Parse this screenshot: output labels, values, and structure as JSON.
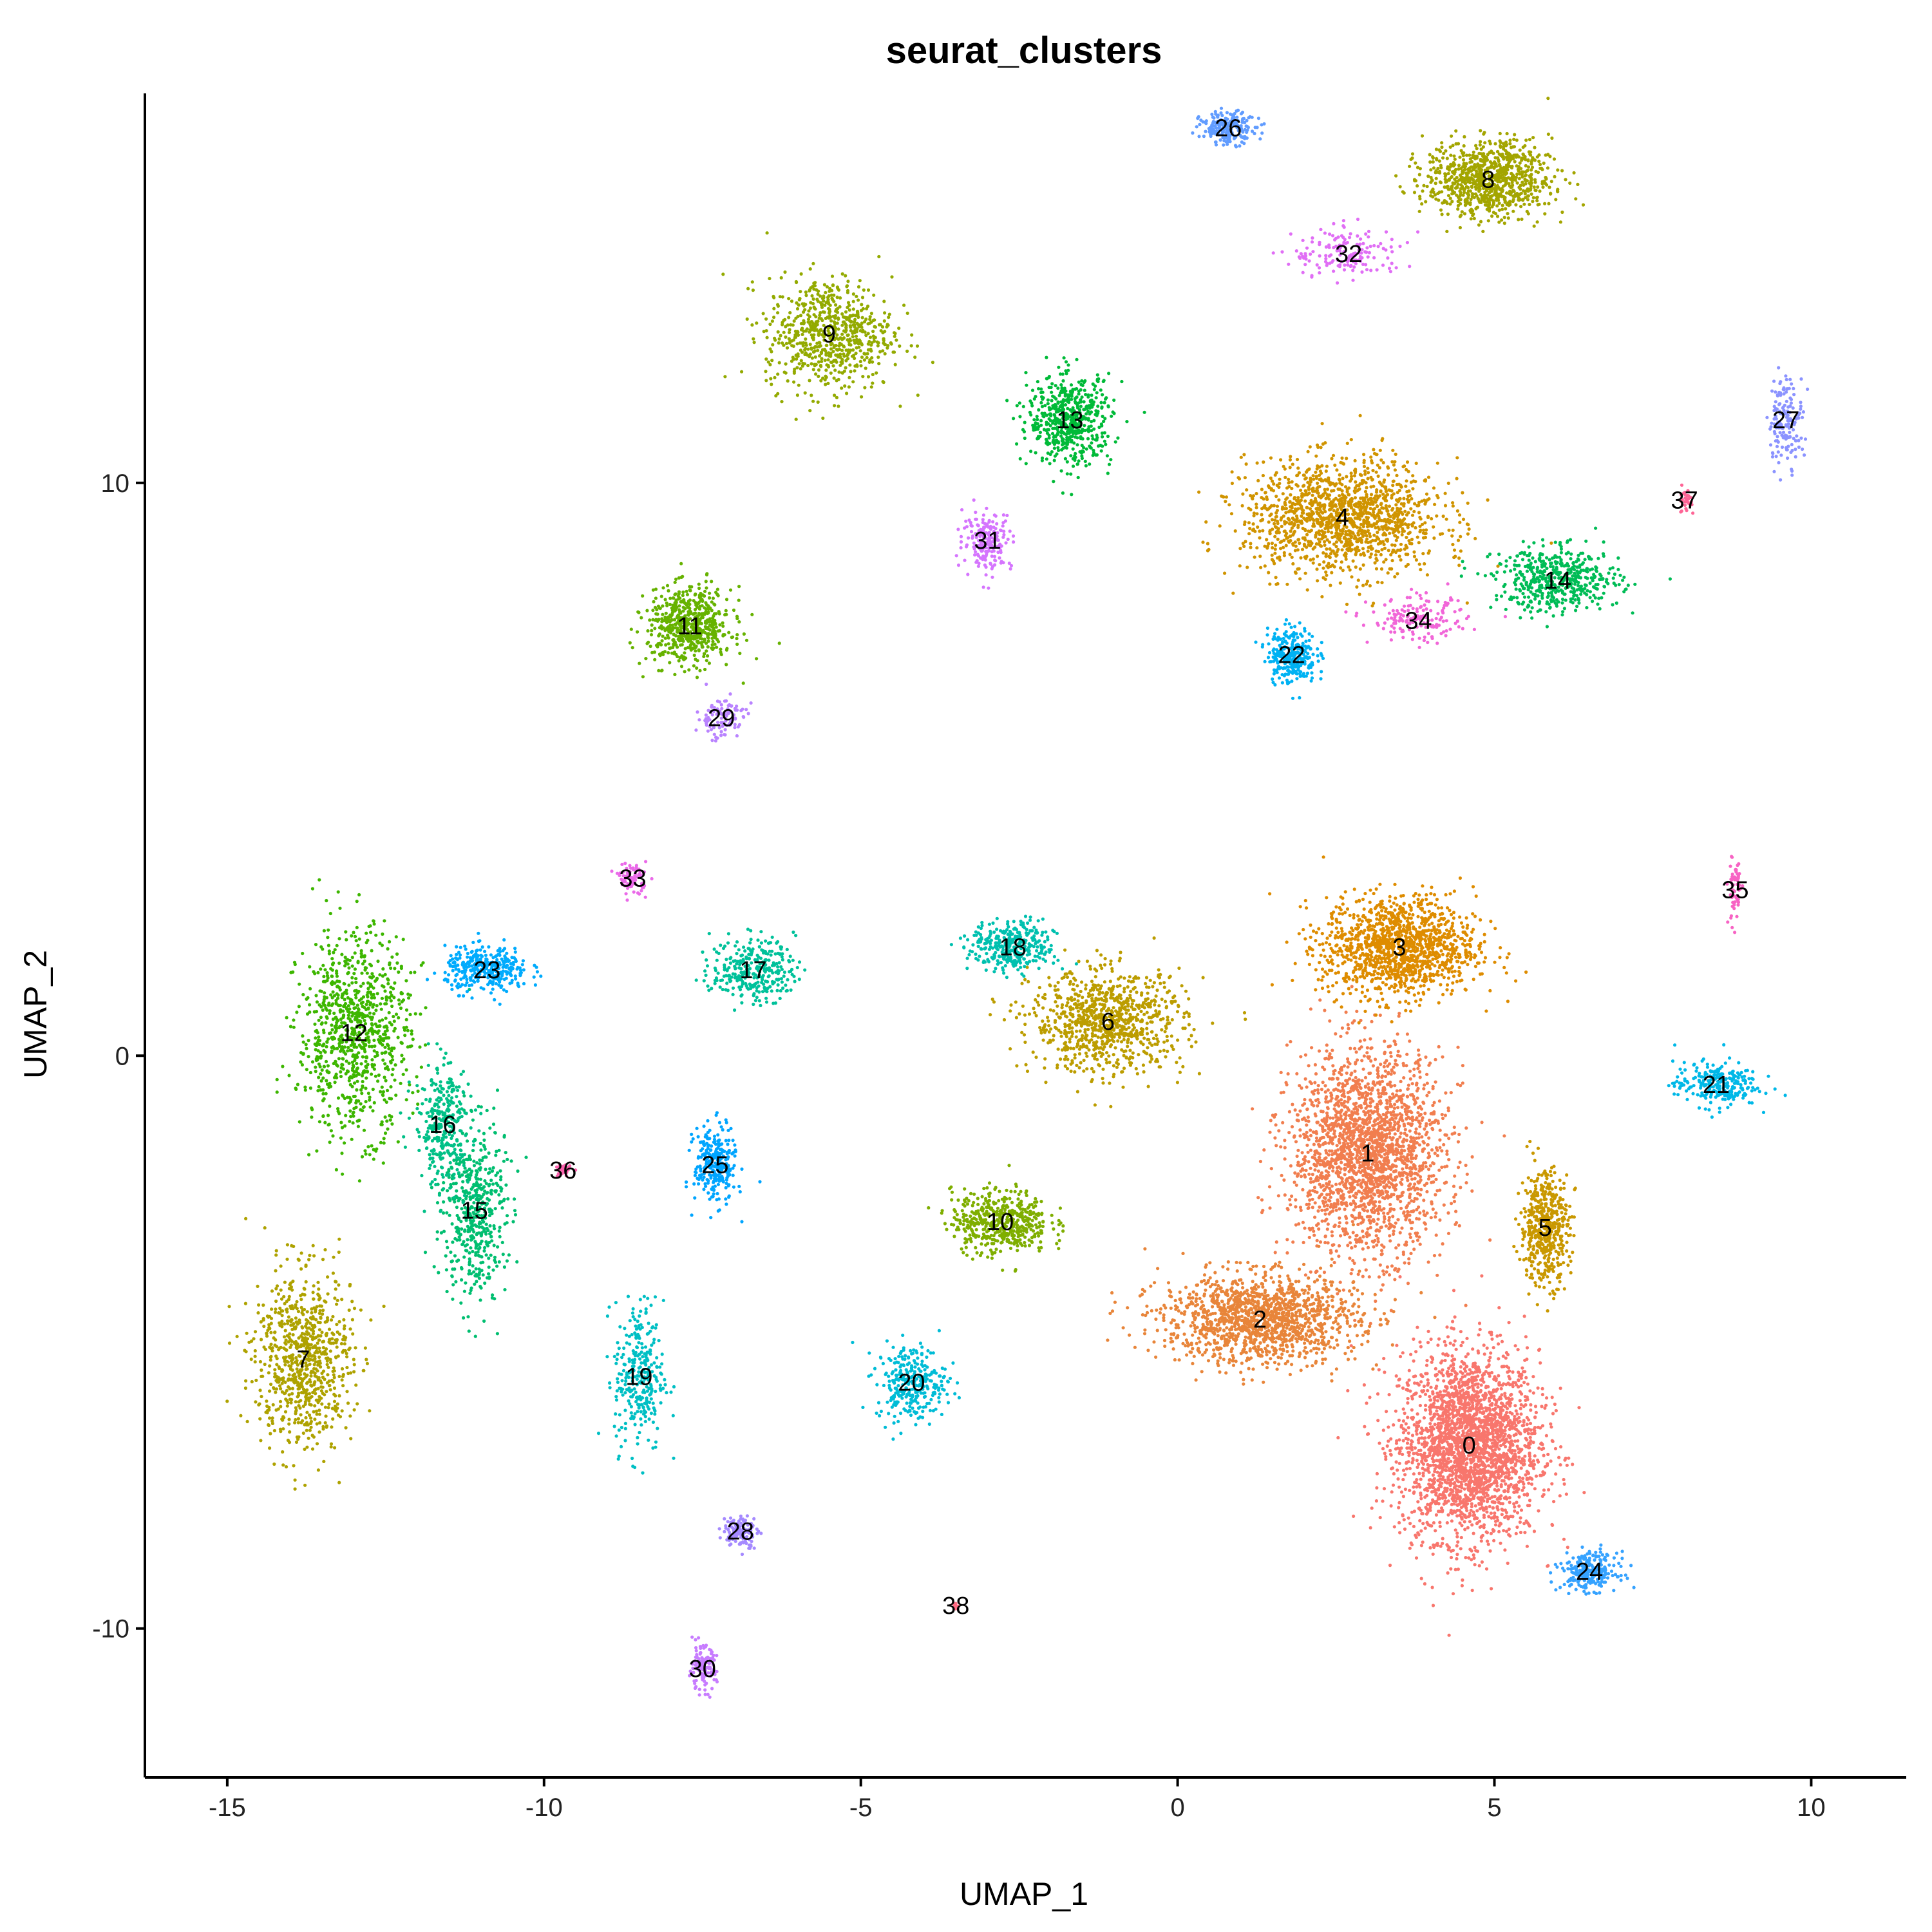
{
  "chart_data": {
    "type": "scatter",
    "title": "seurat_clusters",
    "xlabel": "UMAP_1",
    "ylabel": "UMAP_2",
    "xlim": [
      -16.3,
      11.5
    ],
    "ylim": [
      -12.6,
      16.8
    ],
    "x_ticks": [
      -15,
      -10,
      -5,
      0,
      5,
      10
    ],
    "y_ticks": [
      -10,
      0,
      10
    ],
    "x_tick_labels": [
      "-15",
      "-10",
      "-5",
      "0",
      "5",
      "10"
    ],
    "y_tick_labels": [
      "-10",
      "0",
      "10"
    ],
    "grid": false,
    "legend": "none",
    "point_style": "small dots, one color per cluster",
    "clusters": [
      {
        "label": "0",
        "x": 4.6,
        "y": -6.8,
        "color": "#F8766D"
      },
      {
        "label": "1",
        "x": 3.0,
        "y": -1.7,
        "color": "#F17E4F"
      },
      {
        "label": "2",
        "x": 1.3,
        "y": -4.6,
        "color": "#E8853A"
      },
      {
        "label": "3",
        "x": 3.5,
        "y": 1.9,
        "color": "#DE8C00"
      },
      {
        "label": "4",
        "x": 2.6,
        "y": 9.4,
        "color": "#D09400"
      },
      {
        "label": "5",
        "x": 5.8,
        "y": -3.0,
        "color": "#C99800"
      },
      {
        "label": "6",
        "x": -1.1,
        "y": 0.6,
        "color": "#BC9D00"
      },
      {
        "label": "7",
        "x": -13.8,
        "y": -5.3,
        "color": "#AEA200"
      },
      {
        "label": "8",
        "x": 4.9,
        "y": 15.3,
        "color": "#A3A500"
      },
      {
        "label": "9",
        "x": -5.5,
        "y": 12.6,
        "color": "#93AA00"
      },
      {
        "label": "10",
        "x": -2.8,
        "y": -2.9,
        "color": "#7FAE00"
      },
      {
        "label": "11",
        "x": -7.7,
        "y": 7.5,
        "color": "#66B200"
      },
      {
        "label": "12",
        "x": -13.0,
        "y": 0.4,
        "color": "#3DB600"
      },
      {
        "label": "13",
        "x": -1.7,
        "y": 11.1,
        "color": "#00BA38"
      },
      {
        "label": "14",
        "x": 6.0,
        "y": 8.3,
        "color": "#00BC56"
      },
      {
        "label": "15",
        "x": -11.1,
        "y": -2.7,
        "color": "#00BE70"
      },
      {
        "label": "16",
        "x": -11.6,
        "y": -1.2,
        "color": "#00C087"
      },
      {
        "label": "17",
        "x": -6.7,
        "y": 1.5,
        "color": "#00C19A"
      },
      {
        "label": "18",
        "x": -2.6,
        "y": 1.9,
        "color": "#00C0AF"
      },
      {
        "label": "19",
        "x": -8.5,
        "y": -5.6,
        "color": "#00BFC4"
      },
      {
        "label": "20",
        "x": -4.2,
        "y": -5.7,
        "color": "#00BCD6"
      },
      {
        "label": "21",
        "x": 8.5,
        "y": -0.5,
        "color": "#00B8E7"
      },
      {
        "label": "22",
        "x": 1.8,
        "y": 7.0,
        "color": "#00B2F3"
      },
      {
        "label": "23",
        "x": -10.9,
        "y": 1.5,
        "color": "#00ABFD"
      },
      {
        "label": "24",
        "x": 6.5,
        "y": -9.0,
        "color": "#35A2FF"
      },
      {
        "label": "25",
        "x": -7.3,
        "y": -1.9,
        "color": "#00A5FF"
      },
      {
        "label": "26",
        "x": 0.8,
        "y": 16.2,
        "color": "#619CFF"
      },
      {
        "label": "27",
        "x": 9.6,
        "y": 11.1,
        "color": "#8B93FF"
      },
      {
        "label": "28",
        "x": -6.9,
        "y": -8.3,
        "color": "#A58AFF"
      },
      {
        "label": "29",
        "x": -7.2,
        "y": 5.9,
        "color": "#B983FF"
      },
      {
        "label": "30",
        "x": -7.5,
        "y": -10.7,
        "color": "#C77CFF"
      },
      {
        "label": "31",
        "x": -3.0,
        "y": 9.0,
        "color": "#D575FE"
      },
      {
        "label": "32",
        "x": 2.7,
        "y": 14.0,
        "color": "#E06EF5"
      },
      {
        "label": "33",
        "x": -8.6,
        "y": 3.1,
        "color": "#EA6AE9"
      },
      {
        "label": "34",
        "x": 3.8,
        "y": 7.6,
        "color": "#F166D8"
      },
      {
        "label": "35",
        "x": 8.8,
        "y": 2.9,
        "color": "#F763C4"
      },
      {
        "label": "36",
        "x": -9.7,
        "y": -2.0,
        "color": "#FB61AD"
      },
      {
        "label": "37",
        "x": 8.0,
        "y": 9.7,
        "color": "#FE6596"
      },
      {
        "label": "38",
        "x": -3.5,
        "y": -9.6,
        "color": "#FF6A82"
      }
    ]
  }
}
